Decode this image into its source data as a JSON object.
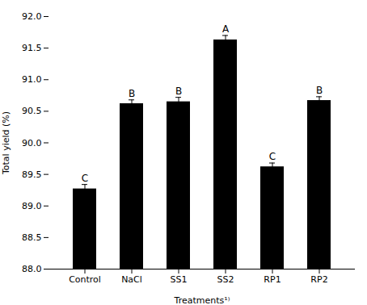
{
  "chart_data": {
    "type": "bar",
    "categories": [
      "Control",
      "NaCl",
      "SS1",
      "SS2",
      "RP1",
      "RP2"
    ],
    "values": [
      89.27,
      90.62,
      90.65,
      91.63,
      89.62,
      90.67
    ],
    "errors": [
      0.07,
      0.06,
      0.07,
      0.07,
      0.06,
      0.06
    ],
    "significance": [
      "C",
      "B",
      "B",
      "A",
      "C",
      "B"
    ],
    "color": "#000000",
    "xlabel": "Treatments¹⁾",
    "ylabel": "Total yield (%)",
    "ylim": [
      88,
      92
    ],
    "yticks": [
      {
        "value": 88,
        "label": "88.0"
      },
      88.5,
      {
        "value": 89,
        "label": "89.0"
      },
      89.5,
      {
        "value": 90,
        "label": "90.0"
      },
      90.5,
      {
        "value": 91,
        "label": "91.0"
      },
      91.5,
      {
        "value": 92,
        "label": "92.0"
      }
    ],
    "grid": false
  }
}
